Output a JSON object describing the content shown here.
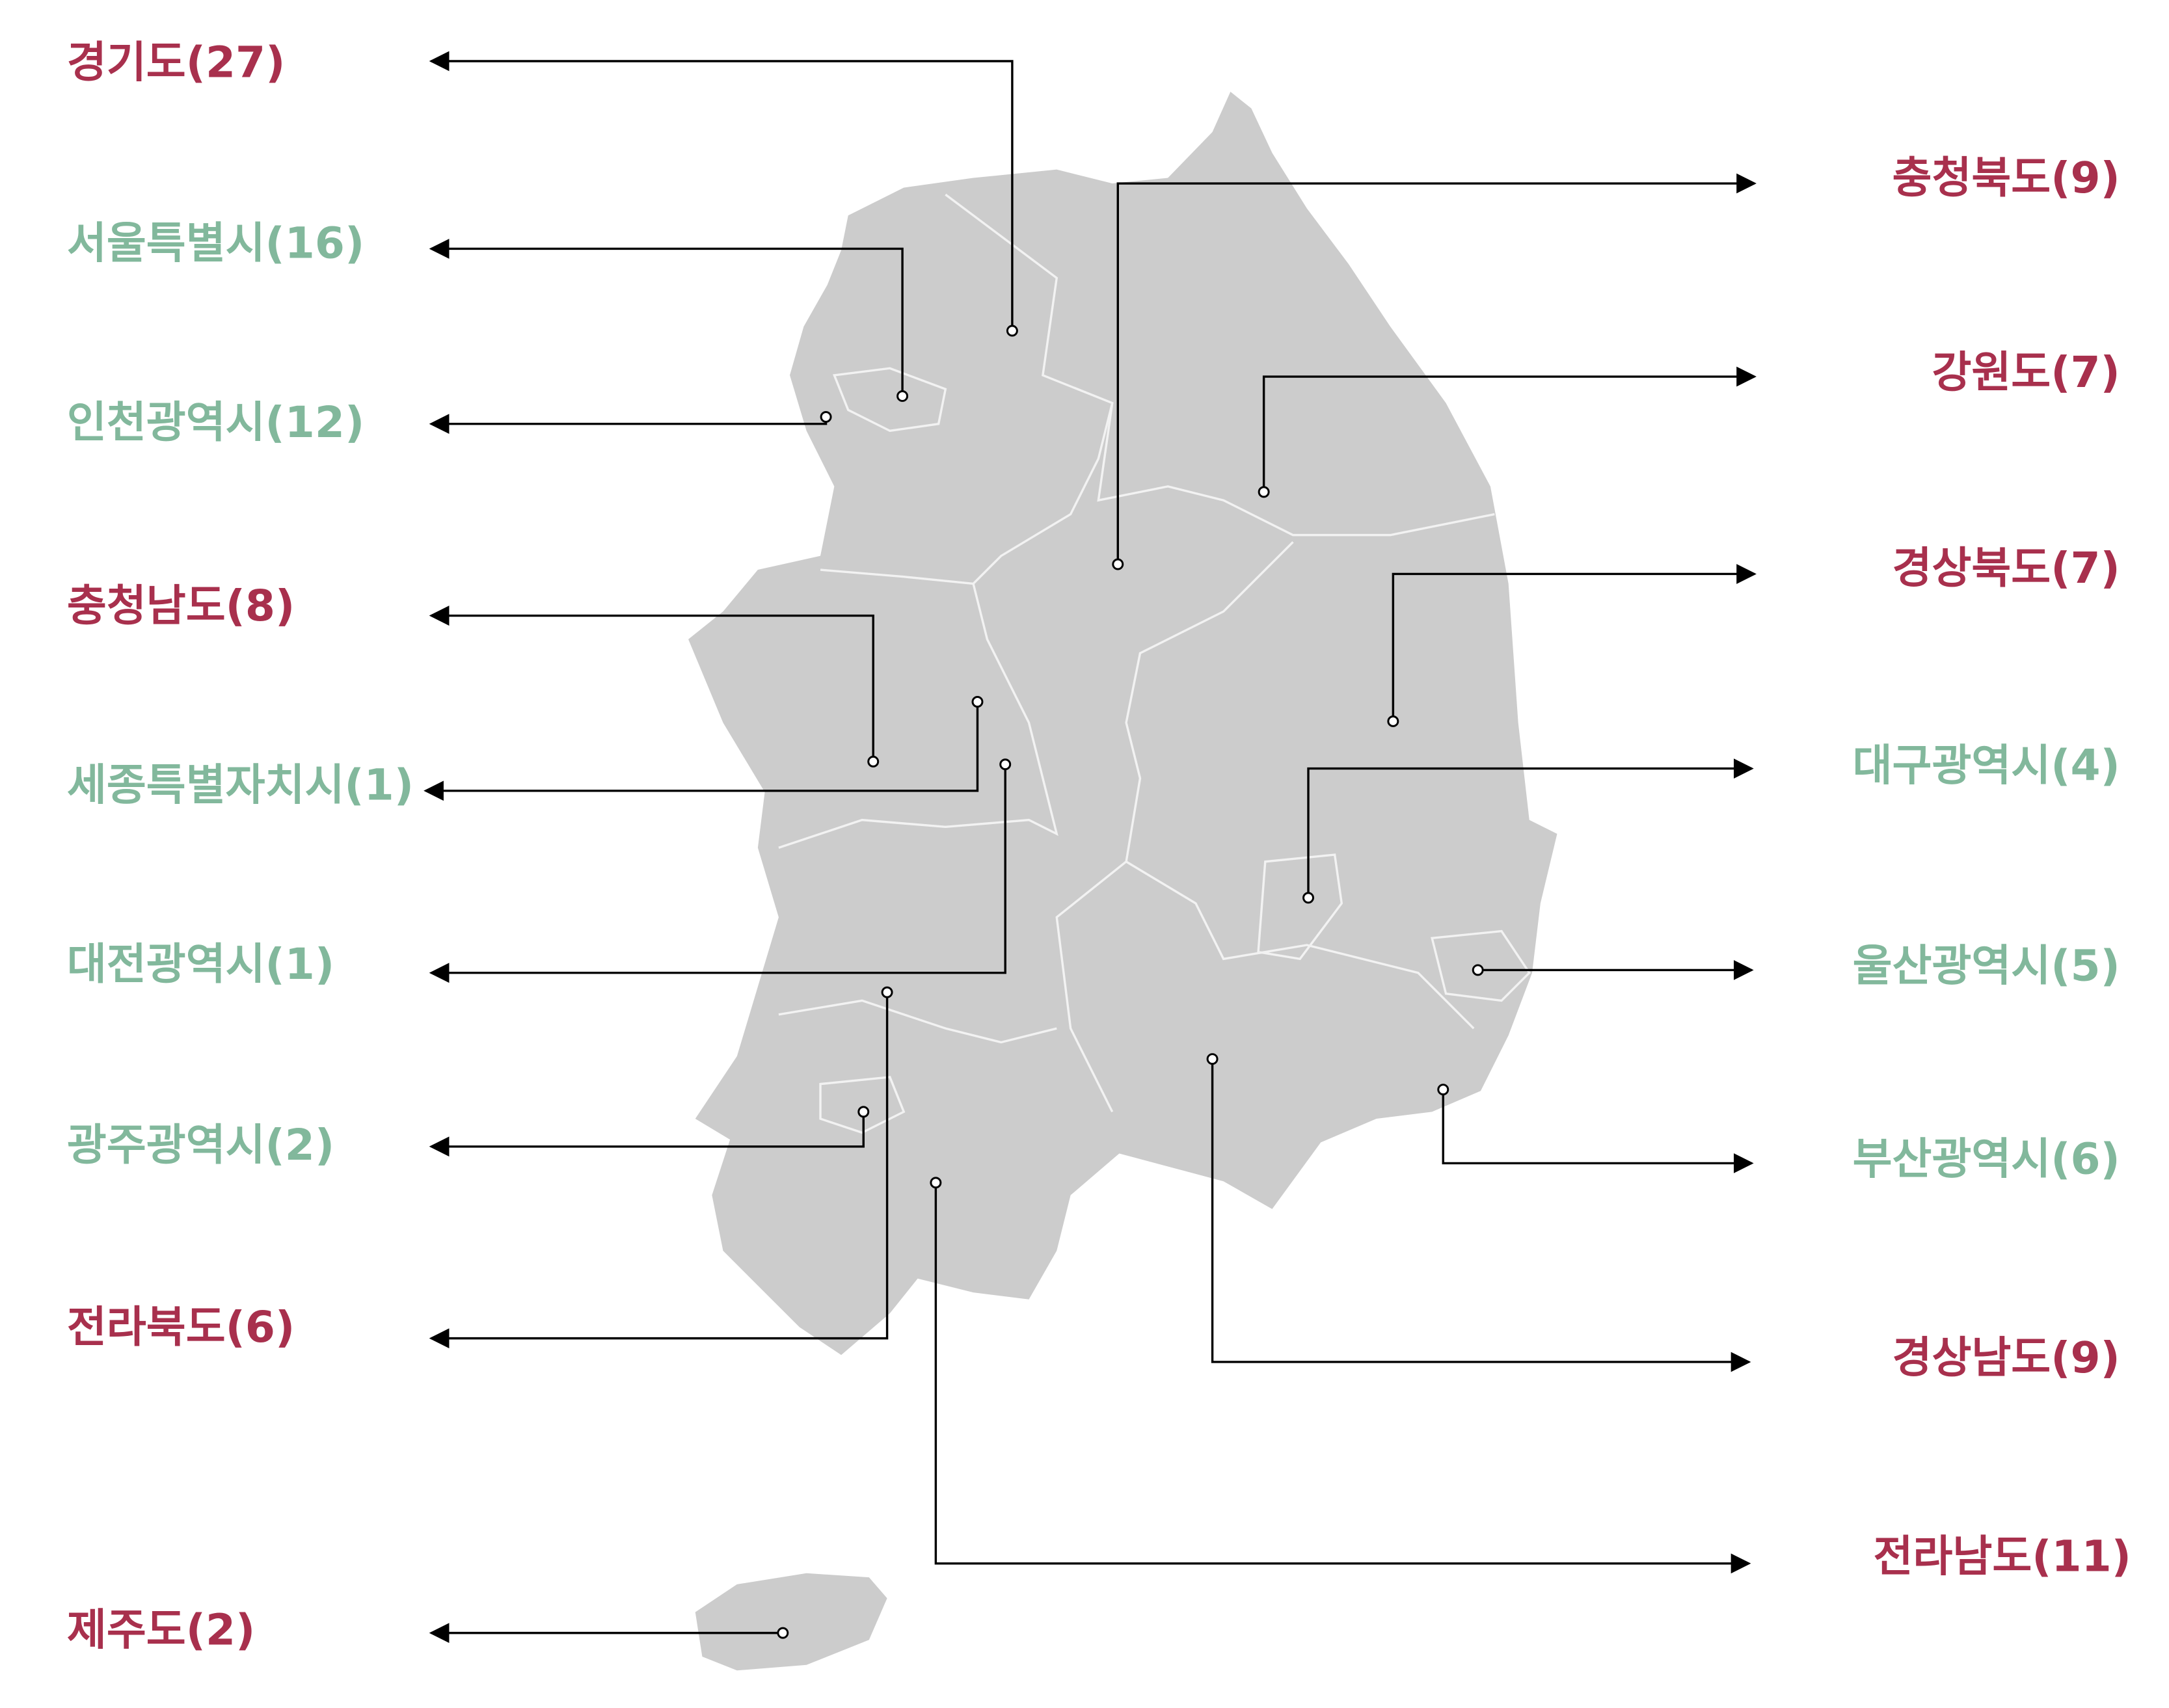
{
  "labels": [
    {
      "text": "경기도(27)",
      "color": "#a8304d"
    },
    {
      "text": "서울특별시(16)",
      "color": "#82b89c"
    },
    {
      "text": "인천광역시(12)",
      "color": "#82b89c"
    },
    {
      "text": "충청남도(8)",
      "color": "#a8304d"
    },
    {
      "text": "세종특별자치시(1)",
      "color": "#82b89c"
    },
    {
      "text": "대전광역시(1)",
      "color": "#82b89c"
    },
    {
      "text": "광주광역시(2)",
      "color": "#82b89c"
    },
    {
      "text": "전라북도(6)",
      "color": "#a8304d"
    },
    {
      "text": "제주도(2)",
      "color": "#a8304d"
    },
    {
      "text": "충청북도(9)",
      "color": "#a8304d"
    },
    {
      "text": "강원도(7)",
      "color": "#a8304d"
    },
    {
      "text": "경상북도(7)",
      "color": "#a8304d"
    },
    {
      "text": "대구광역시(4)",
      "color": "#82b89c"
    },
    {
      "text": "울산광역시(5)",
      "color": "#82b89c"
    },
    {
      "text": "부산광역시(6)",
      "color": "#82b89c"
    },
    {
      "text": "경상남도(9)",
      "color": "#a8304d"
    },
    {
      "text": "전라남도(11)",
      "color": "#a8304d"
    }
  ]
}
